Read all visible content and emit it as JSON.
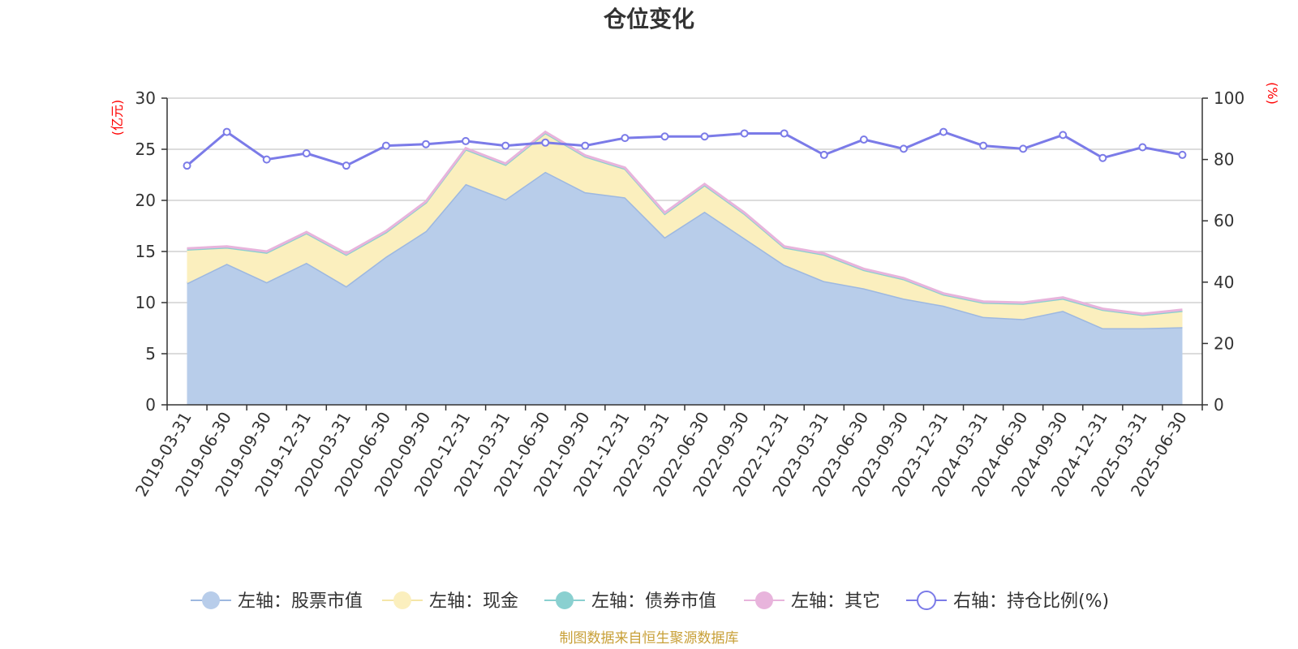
{
  "chart_data": {
    "type": "area",
    "title": "仓位变化",
    "left_axis_unit": "(亿元)",
    "right_axis_unit": "(%)",
    "ylim_left": [
      0,
      30
    ],
    "yticks_left": [
      0,
      5,
      10,
      15,
      20,
      25,
      30
    ],
    "ylim_right": [
      0,
      100
    ],
    "yticks_right": [
      0,
      20,
      40,
      60,
      80,
      100
    ],
    "grid": true,
    "legend_position": "bottom",
    "x": [
      "2019-03-31",
      "2019-06-30",
      "2019-09-30",
      "2019-12-31",
      "2020-03-31",
      "2020-06-30",
      "2020-09-30",
      "2020-12-31",
      "2021-03-31",
      "2021-06-30",
      "2021-09-30",
      "2021-12-31",
      "2022-03-31",
      "2022-06-30",
      "2022-09-30",
      "2022-12-31",
      "2023-03-31",
      "2023-06-30",
      "2023-09-30",
      "2023-12-31",
      "2024-03-31",
      "2024-06-30",
      "2024-09-30",
      "2024-12-31",
      "2025-03-31",
      "2025-06-30"
    ],
    "series": [
      {
        "name": "左轴：股票市值",
        "axis": "left",
        "stack": true,
        "color": "#9db8e0",
        "fill": "#b8cdea",
        "values": [
          11.9,
          13.8,
          12.0,
          13.9,
          11.6,
          14.5,
          17.0,
          21.6,
          20.1,
          22.8,
          20.8,
          20.3,
          16.4,
          18.9,
          16.3,
          13.7,
          12.1,
          11.4,
          10.4,
          9.7,
          8.6,
          8.4,
          9.2,
          7.5,
          7.5,
          7.6
        ]
      },
      {
        "name": "左轴：现金",
        "axis": "left",
        "stack": true,
        "color": "#f5e6a8",
        "fill": "#fbefbe",
        "values": [
          3.3,
          1.6,
          2.9,
          2.9,
          3.1,
          2.4,
          2.8,
          3.4,
          3.4,
          3.8,
          3.5,
          2.8,
          2.3,
          2.6,
          2.4,
          1.7,
          2.6,
          1.8,
          1.9,
          1.1,
          1.4,
          1.5,
          1.2,
          1.8,
          1.3,
          1.6
        ]
      },
      {
        "name": "左轴：债券市值",
        "axis": "left",
        "stack": true,
        "color": "#8ad0d0",
        "fill": "#8ad0d0",
        "values": [
          0,
          0,
          0,
          0,
          0,
          0,
          0,
          0,
          0,
          0,
          0,
          0,
          0,
          0,
          0,
          0,
          0,
          0,
          0,
          0,
          0,
          0,
          0,
          0,
          0,
          0
        ]
      },
      {
        "name": "左轴：其它",
        "axis": "left",
        "stack": true,
        "color": "#e8b4dc",
        "fill": "#e8b4dc",
        "values": [
          0.1,
          0.1,
          0.1,
          0.1,
          0.1,
          0.1,
          0.1,
          0.1,
          0.1,
          0.1,
          0.1,
          0.1,
          0.1,
          0.1,
          0.1,
          0.1,
          0.1,
          0.1,
          0.1,
          0.1,
          0.1,
          0.1,
          0.1,
          0.1,
          0.1,
          0.1
        ]
      },
      {
        "name": "右轴：持仓比例(%)",
        "axis": "right",
        "stack": false,
        "color": "#7b7be8",
        "values": [
          78,
          89,
          80,
          82,
          78,
          84.5,
          85,
          86,
          84.5,
          85.5,
          84.5,
          87,
          87.5,
          87.5,
          88.5,
          88.5,
          81.5,
          86.5,
          83.5,
          89,
          84.5,
          83.5,
          88,
          80.5,
          84,
          81.5
        ]
      }
    ]
  },
  "footer": {
    "source": "制图数据来自恒生聚源数据库"
  }
}
